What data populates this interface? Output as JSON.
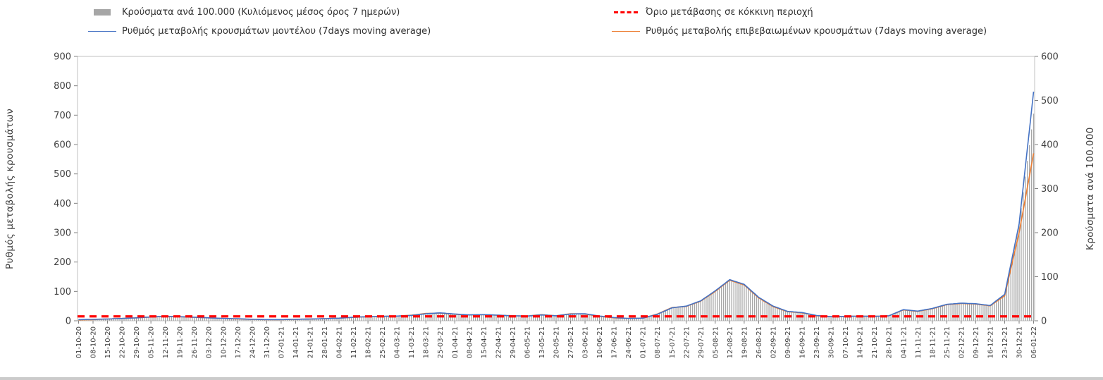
{
  "chart_data": {
    "type": "combo-bar-line",
    "title": "",
    "legend_position": "top",
    "grid": false,
    "x_labels": [
      "01-10-20",
      "08-10-20",
      "15-10-20",
      "22-10-20",
      "29-10-20",
      "05-11-20",
      "12-11-20",
      "19-11-20",
      "26-11-20",
      "03-12-20",
      "10-12-20",
      "17-12-20",
      "24-12-20",
      "31-12-20",
      "07-01-21",
      "14-01-21",
      "21-01-21",
      "28-01-21",
      "04-02-21",
      "11-02-21",
      "18-02-21",
      "25-02-21",
      "04-03-21",
      "11-03-21",
      "18-03-21",
      "25-03-21",
      "01-04-21",
      "08-04-21",
      "15-04-21",
      "22-04-21",
      "29-04-21",
      "06-05-21",
      "13-05-21",
      "20-05-21",
      "27-05-21",
      "03-06-21",
      "10-06-21",
      "17-06-21",
      "24-06-21",
      "01-07-21",
      "08-07-21",
      "15-07-21",
      "22-07-21",
      "29-07-21",
      "05-08-21",
      "12-08-21",
      "19-08-21",
      "26-08-21",
      "02-09-21",
      "09-09-21",
      "16-09-21",
      "23-09-21",
      "30-09-21",
      "07-10-21",
      "14-10-21",
      "21-10-21",
      "28-10-21",
      "04-11-21",
      "11-11-21",
      "18-11-21",
      "25-11-21",
      "02-12-21",
      "09-12-21",
      "16-12-21",
      "23-12-21",
      "30-12-21",
      "06-01-22"
    ],
    "series": [
      {
        "name": "Κρούσματα ανά 100.000 (Κυλιόμενος μέσος όρος 7 ημερών)",
        "type": "bar",
        "axis": "right",
        "color": "#a6a6a6",
        "values": [
          3,
          3,
          4,
          5,
          7,
          9,
          10,
          9,
          8,
          7,
          5,
          5,
          3,
          3,
          3,
          3,
          4,
          5,
          6,
          8,
          9,
          10,
          11,
          12,
          16,
          18,
          15,
          13,
          14,
          13,
          11,
          11,
          13,
          11,
          15,
          16,
          11,
          7,
          5,
          6,
          15,
          29,
          33,
          45,
          68,
          93,
          83,
          53,
          33,
          21,
          19,
          12,
          9,
          10,
          11,
          10,
          11,
          25,
          22,
          28,
          37,
          40,
          39,
          35,
          60,
          220,
          470
        ]
      },
      {
        "name": "Όριο μετάβασης σε κόκκινη περιοχή",
        "type": "dashed-line",
        "axis": "left",
        "color": "#ff0000",
        "value": 15
      },
      {
        "name": "Ρυθμός μεταβολής κρουσμάτων μοντέλου (7days moving average)",
        "type": "line",
        "axis": "left",
        "color": "#4472c4",
        "values": [
          4,
          5,
          6,
          8,
          10,
          13,
          15,
          14,
          12,
          10,
          8,
          7,
          5,
          4,
          4,
          5,
          6,
          7,
          9,
          12,
          14,
          15,
          16,
          18,
          24,
          27,
          23,
          20,
          21,
          19,
          17,
          16,
          20,
          17,
          23,
          24,
          16,
          11,
          8,
          9,
          22,
          44,
          50,
          68,
          102,
          140,
          124,
          80,
          50,
          32,
          28,
          18,
          14,
          15,
          16,
          15,
          17,
          38,
          33,
          42,
          56,
          60,
          58,
          52,
          90,
          330,
          780
        ]
      },
      {
        "name": "Ρυθμός μεταβολής επιβεβαιωμένων κρουσμάτων (7days moving average)",
        "type": "line",
        "axis": "left",
        "color": "#ed7d31",
        "values": [
          3,
          4,
          6,
          8,
          10,
          13,
          15,
          14,
          12,
          10,
          8,
          6,
          5,
          4,
          4,
          5,
          6,
          7,
          9,
          12,
          14,
          15,
          16,
          19,
          25,
          26,
          22,
          20,
          21,
          19,
          17,
          16,
          21,
          17,
          24,
          23,
          15,
          10,
          8,
          9,
          23,
          45,
          49,
          67,
          100,
          138,
          122,
          78,
          48,
          31,
          27,
          17,
          14,
          15,
          16,
          15,
          17,
          37,
          32,
          41,
          55,
          59,
          57,
          51,
          85,
          300,
          570
        ]
      }
    ],
    "left_axis": {
      "label": "Ρυθμός μεταβολής κρουσμάτων",
      "min": 0,
      "max": 900,
      "step": 100
    },
    "right_axis": {
      "label": "Κρούσματα ανά 100.000",
      "min": 0,
      "max": 600,
      "step": 100
    }
  }
}
